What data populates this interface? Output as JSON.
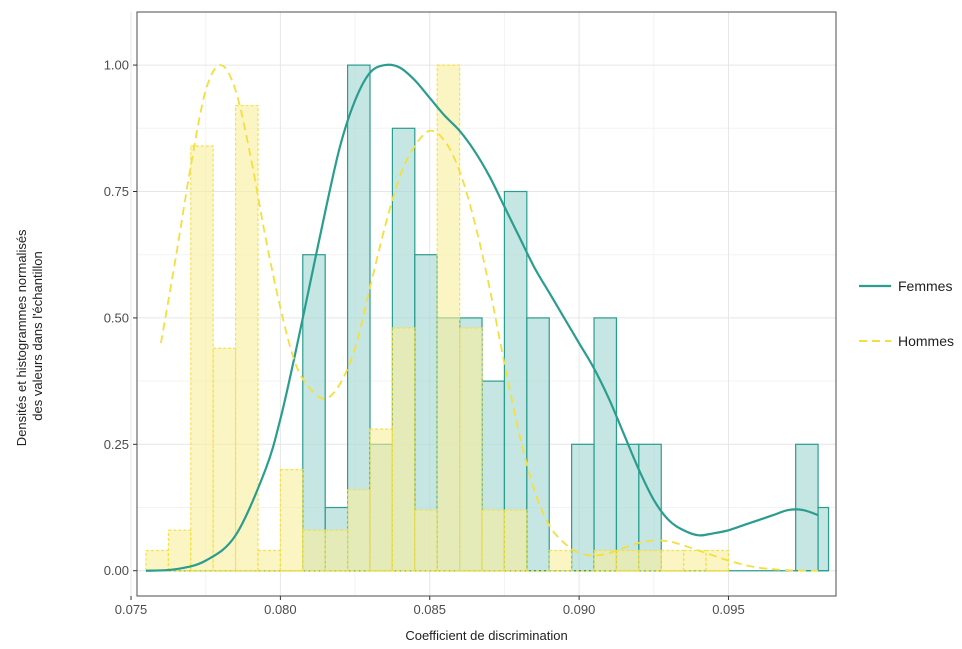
{
  "chart_data": {
    "type": "histogram+density",
    "xlabel": "Coefficient de discrimination",
    "ylabel_lines": [
      "Densités et histogrammes normalisés",
      "des valeurs dans l'échantillon"
    ],
    "xlim": [
      0.0752,
      0.0986
    ],
    "ylim": [
      -0.05,
      1.105
    ],
    "x_ticks": [
      0.075,
      0.08,
      0.085,
      0.09,
      0.095
    ],
    "x_tick_labels": [
      "0.075",
      "0.080",
      "0.085",
      "0.090",
      "0.095"
    ],
    "y_ticks": [
      0,
      0.25,
      0.5,
      0.75,
      1.0
    ],
    "y_tick_labels": [
      "0.00",
      "0.25",
      "0.50",
      "0.75",
      "1.00"
    ],
    "grid": true,
    "legend_position": "right",
    "series": [
      {
        "name": "Femmes",
        "color": "#2a9d8f",
        "fill": "#a8d8d4",
        "line_style": "solid",
        "bin_edges": [
          0.0755,
          0.07625,
          0.077,
          0.07775,
          0.0785,
          0.07925,
          0.08,
          0.08075,
          0.0815,
          0.08225,
          0.083,
          0.08375,
          0.0845,
          0.08525,
          0.086,
          0.08675,
          0.0875,
          0.08825,
          0.089,
          0.08975,
          0.0905,
          0.09125,
          0.092,
          0.09275,
          0.0935,
          0.09425,
          0.095,
          0.09575,
          0.0965,
          0.09725,
          0.098,
          0.09835
        ],
        "hist_values": [
          0,
          0,
          0,
          0,
          0,
          0,
          0,
          0.625,
          0.125,
          1.0,
          0.25,
          0.875,
          0.625,
          0.5,
          0.5,
          0.375,
          0.75,
          0.5,
          0,
          0.25,
          0.5,
          0.25,
          0.25,
          0,
          0,
          0,
          0,
          0,
          0,
          0.25,
          0.125
        ],
        "density_x": [
          0.0755,
          0.0765,
          0.0775,
          0.0785,
          0.0795,
          0.08,
          0.0805,
          0.081,
          0.0815,
          0.082,
          0.0825,
          0.083,
          0.0835,
          0.084,
          0.0845,
          0.085,
          0.0855,
          0.086,
          0.0865,
          0.087,
          0.0875,
          0.088,
          0.0885,
          0.089,
          0.0895,
          0.09,
          0.0905,
          0.091,
          0.0915,
          0.092,
          0.0925,
          0.093,
          0.0935,
          0.094,
          0.0945,
          0.095,
          0.0955,
          0.096,
          0.0965,
          0.097,
          0.0975,
          0.098
        ],
        "density_y": [
          0.0,
          0.003,
          0.02,
          0.07,
          0.2,
          0.3,
          0.43,
          0.57,
          0.71,
          0.84,
          0.93,
          0.985,
          1.0,
          0.995,
          0.97,
          0.935,
          0.9,
          0.87,
          0.83,
          0.78,
          0.72,
          0.66,
          0.6,
          0.55,
          0.5,
          0.45,
          0.4,
          0.34,
          0.27,
          0.2,
          0.14,
          0.1,
          0.08,
          0.07,
          0.074,
          0.08,
          0.09,
          0.1,
          0.11,
          0.12,
          0.12,
          0.11
        ]
      },
      {
        "name": "Hommes",
        "color": "#f5df3c",
        "fill": "#f8ef9c",
        "line_style": "dashed",
        "bin_edges": [
          0.0755,
          0.07625,
          0.077,
          0.07775,
          0.0785,
          0.07925,
          0.08,
          0.08075,
          0.0815,
          0.08225,
          0.083,
          0.08375,
          0.0845,
          0.08525,
          0.086,
          0.08675,
          0.0875,
          0.08825,
          0.089,
          0.08975,
          0.0905,
          0.09125,
          0.092,
          0.09275,
          0.0935,
          0.09425,
          0.095
        ],
        "hist_values": [
          0.04,
          0.08,
          0.84,
          0.44,
          0.92,
          0.04,
          0.2,
          0.08,
          0.08,
          0.16,
          0.28,
          0.48,
          0.12,
          1.0,
          0.48,
          0.12,
          0.12,
          0.0,
          0.04,
          0.0,
          0.04,
          0.04,
          0.04,
          0.04,
          0.04,
          0.04
        ],
        "density_x": [
          0.076,
          0.0765,
          0.077,
          0.0775,
          0.078,
          0.0785,
          0.079,
          0.0795,
          0.08,
          0.0805,
          0.081,
          0.0815,
          0.082,
          0.0825,
          0.083,
          0.0835,
          0.084,
          0.0845,
          0.085,
          0.0855,
          0.086,
          0.0865,
          0.087,
          0.0875,
          0.088,
          0.0885,
          0.089,
          0.0895,
          0.09,
          0.0905,
          0.091,
          0.0915,
          0.092,
          0.0925,
          0.093,
          0.0935,
          0.094,
          0.0945,
          0.095,
          0.0955,
          0.096,
          0.0965,
          0.097,
          0.0975,
          0.098
        ],
        "density_y": [
          0.45,
          0.62,
          0.8,
          0.95,
          1.0,
          0.95,
          0.82,
          0.66,
          0.52,
          0.41,
          0.36,
          0.34,
          0.37,
          0.44,
          0.56,
          0.68,
          0.78,
          0.84,
          0.87,
          0.85,
          0.79,
          0.69,
          0.56,
          0.41,
          0.27,
          0.16,
          0.09,
          0.055,
          0.035,
          0.03,
          0.035,
          0.045,
          0.055,
          0.06,
          0.058,
          0.05,
          0.04,
          0.03,
          0.02,
          0.012,
          0.006,
          0.003,
          0.001,
          0.0,
          0.0
        ]
      }
    ]
  }
}
